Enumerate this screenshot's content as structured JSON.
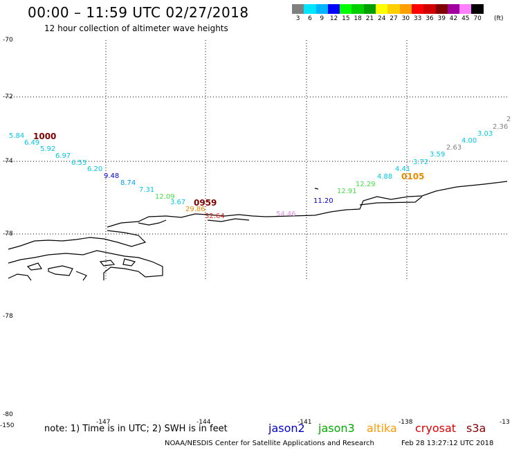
{
  "header": {
    "title": "00:00 – 11:59 UTC 02/27/2018",
    "subtitle": "12 hour collection of altimeter wave heights"
  },
  "color_scale": {
    "labels": [
      "3",
      "6",
      "9",
      "12",
      "15",
      "18",
      "21",
      "24",
      "27",
      "30",
      "33",
      "36",
      "39",
      "42",
      "45",
      "70"
    ],
    "unit": "(ft)",
    "colors": [
      "#808080",
      "#00e5ff",
      "#00b4ff",
      "#0000ff",
      "#00ff00",
      "#00d000",
      "#00a000",
      "#ffff00",
      "#ffd000",
      "#ffa000",
      "#ff0000",
      "#d00000",
      "#800000",
      "#a000a0",
      "#ff80ff",
      "#000000"
    ]
  },
  "lat_labels": [
    "-70",
    "-72",
    "-74",
    "-78",
    "-78",
    "-80"
  ],
  "lon_labels": [
    "-150",
    "-147",
    "-144",
    "-141",
    "-138",
    "-13"
  ],
  "observations": [
    {
      "v": "5.84",
      "c": "#00c8e6"
    },
    {
      "v": "6.49",
      "c": "#00c8e6"
    },
    {
      "v": "5.92",
      "c": "#00c8e6"
    },
    {
      "v": "6.97",
      "c": "#00c8e6"
    },
    {
      "v": "6.53",
      "c": "#00c8e6"
    },
    {
      "v": "6.20",
      "c": "#00c8e6"
    },
    {
      "v": "9.48",
      "c": "#0000cc"
    },
    {
      "v": "8.74",
      "c": "#00a0e6"
    },
    {
      "v": "7.31",
      "c": "#00c8e6"
    },
    {
      "v": "12.09",
      "c": "#44dd44"
    },
    {
      "v": "3.67",
      "c": "#00c8e6"
    },
    {
      "v": "29.86",
      "c": "#e68a00"
    },
    {
      "v": "32.64",
      "c": "#e02020"
    },
    {
      "v": "54.46",
      "c": "#e090e0"
    },
    {
      "v": "11.20",
      "c": "#0000cc"
    },
    {
      "v": "12.91",
      "c": "#44dd44"
    },
    {
      "v": "12.29",
      "c": "#44dd44"
    },
    {
      "v": "4.88",
      "c": "#00c8e6"
    },
    {
      "v": "4.41",
      "c": "#00c8e6"
    },
    {
      "v": "3.72",
      "c": "#00c8e6"
    },
    {
      "v": "3.59",
      "c": "#00c8e6"
    },
    {
      "v": "2.63",
      "c": "#808080"
    },
    {
      "v": "4.00",
      "c": "#00c8e6"
    },
    {
      "v": "3.03",
      "c": "#00c8e6"
    },
    {
      "v": "2.36",
      "c": "#808080"
    },
    {
      "v": "2",
      "c": "#808080"
    }
  ],
  "time_tags": [
    {
      "v": "1000",
      "c": "#800000"
    },
    {
      "v": "0959",
      "c": "#800000"
    },
    {
      "v": "0105",
      "c": "#e68a00"
    }
  ],
  "footer": {
    "note": "note: 1) Time is in UTC; 2) SWH is in feet",
    "satellites": [
      {
        "name": "jason2",
        "color": "#0000cc"
      },
      {
        "name": "jason3",
        "color": "#00aa00"
      },
      {
        "name": "altika",
        "color": "#ff9900"
      },
      {
        "name": "cryosat",
        "color": "#dd0000"
      },
      {
        "name": "s3a",
        "color": "#880000"
      }
    ],
    "credit": "NOAA/NESDIS Center for Satellite Applications and Research",
    "timestamp": "Feb 28 13:27:12 UTC 2018"
  }
}
